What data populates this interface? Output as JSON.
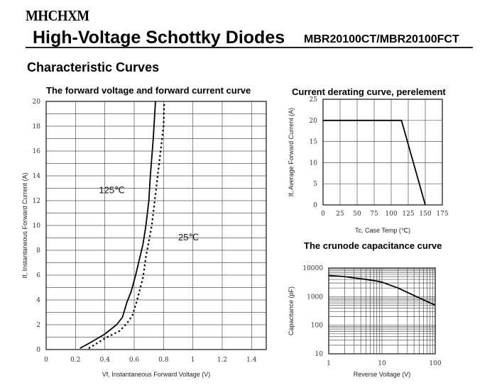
{
  "header": {
    "logo": "MHCHXM",
    "title": "High-Voltage Schottky Diodes",
    "part_number": "MBR20100CT/MBR20100FCT",
    "section": "Characteristic Curves"
  },
  "chart_data": [
    {
      "type": "line",
      "title": "The forward voltage and forward current curve",
      "xlabel": "Vf, Instantaneous Forward Voltage (V)",
      "ylabel": "If, Instantaneous Forward Current (A)",
      "xlim": [
        0,
        1.5
      ],
      "ylim": [
        0,
        20
      ],
      "xticks": [
        0,
        0.2,
        0.4,
        0.6,
        0.8,
        1,
        1.2,
        1.4
      ],
      "xtick_labels": [
        "0",
        "0.2",
        "0.4",
        "0.6",
        "0.8",
        "1",
        "1.2",
        "1.4"
      ],
      "yticks": [
        0,
        2,
        4,
        6,
        8,
        10,
        12,
        14,
        16,
        18,
        20
      ],
      "grid": true,
      "series": [
        {
          "name": "125℃",
          "style": "solid",
          "x": [
            0.23,
            0.3,
            0.4,
            0.48,
            0.52,
            0.55,
            0.58,
            0.61,
            0.66,
            0.68,
            0.7,
            0.71,
            0.73,
            0.745
          ],
          "y": [
            0.1,
            0.55,
            1.25,
            2.0,
            2.6,
            3.8,
            4.7,
            6.0,
            8.5,
            10,
            12,
            14,
            17,
            20
          ]
        },
        {
          "name": "25℃",
          "style": "dotted",
          "x": [
            0.29,
            0.4,
            0.5,
            0.55,
            0.59,
            0.62,
            0.66,
            0.68,
            0.72,
            0.75,
            0.78,
            0.8,
            0.805
          ],
          "y": [
            0.1,
            0.9,
            1.5,
            2.1,
            2.8,
            4.0,
            5.8,
            7.5,
            10,
            13,
            16,
            18,
            20
          ]
        }
      ],
      "annotations": [
        {
          "text": "125℃",
          "x": 0.36,
          "y": 12.6
        },
        {
          "text": "25℃",
          "x": 0.9,
          "y": 8.8
        }
      ]
    },
    {
      "type": "line",
      "title": "Current derating curve, perelement",
      "xlabel": "Tc, Case Temp (℃)",
      "ylabel": "If, Average Forward Current (A)",
      "xlim": [
        0,
        175
      ],
      "ylim": [
        0,
        25
      ],
      "xticks": [
        0,
        25,
        50,
        75,
        100,
        125,
        150,
        175
      ],
      "yticks": [
        0,
        5,
        10,
        15,
        20,
        25
      ],
      "grid": true,
      "series": [
        {
          "style": "solid",
          "x": [
            0,
            115,
            150
          ],
          "y": [
            20,
            20,
            0
          ]
        }
      ]
    },
    {
      "type": "line",
      "title": "The crunode capacitance curve",
      "xlabel": "Reverse Voltage (V)",
      "ylabel": "Capacitance (pF)",
      "xscale": "log",
      "yscale": "log",
      "xlim": [
        1,
        100
      ],
      "ylim": [
        10,
        10000
      ],
      "xticks": [
        1,
        10,
        100
      ],
      "yticks": [
        10,
        100,
        1000,
        10000
      ],
      "grid": true,
      "series": [
        {
          "style": "solid",
          "x": [
            1,
            2,
            3,
            5,
            8,
            10,
            20,
            50,
            100
          ],
          "y": [
            5500,
            5000,
            4500,
            4000,
            3500,
            3200,
            2000,
            900,
            500
          ]
        }
      ]
    }
  ]
}
